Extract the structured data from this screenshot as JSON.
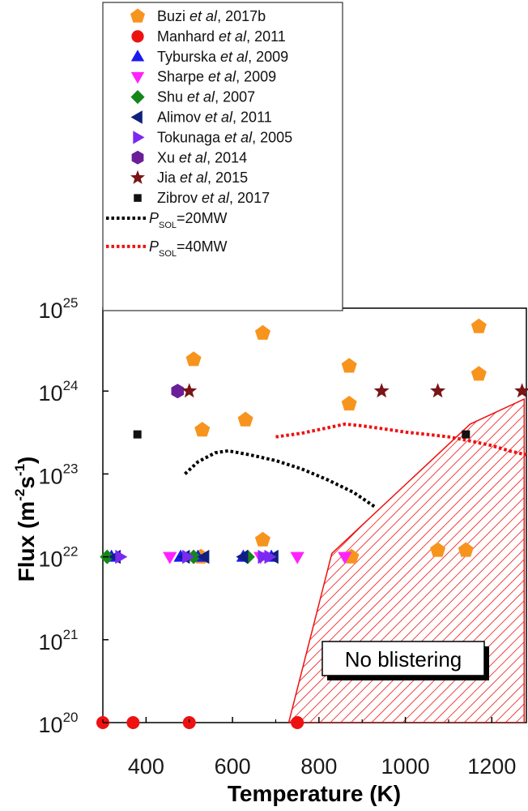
{
  "chart_data": {
    "type": "scatter",
    "xlabel": "Temperature (K)",
    "ylabel_base": "Flux (m",
    "ylabel_exp1": "-2",
    "ylabel_mid": "s",
    "ylabel_exp2": "-1",
    "ylabel_end": ")",
    "xlim": [
      300,
      1280
    ],
    "ylim": [
      1e+20,
      1e+25
    ],
    "yscale": "log",
    "x_ticks": [
      400,
      600,
      800,
      1000,
      1200
    ],
    "y_tick_exponents": [
      20,
      21,
      22,
      23,
      24,
      25
    ],
    "y_tick_base": "10",
    "grid": false,
    "legend_position": "top-left",
    "annotation": "No blistering",
    "no_blistering_region": [
      [
        730,
        1e+20
      ],
      [
        830,
        1.1e+22
      ],
      [
        1150,
        4e+23
      ],
      [
        1275,
        8e+23
      ],
      [
        1275,
        1e+20
      ]
    ],
    "series": [
      {
        "name": "Buzi et al, 2017b",
        "name_pre": "Buzi ",
        "name_etal": "et al",
        "name_post": ", 2017b",
        "marker": "pentagon",
        "color": "#f7941d",
        "x": [
          510,
          530,
          527,
          630,
          670,
          670,
          870,
          870,
          875,
          1075,
          1140,
          1170,
          1170
        ],
        "y": [
          2.4e+24,
          3.4e+23,
          1e+22,
          4.5e+23,
          5e+24,
          1.6e+22,
          2e+24,
          7e+23,
          1e+22,
          1.2e+22,
          1.2e+22,
          6e+24,
          1.6e+24
        ]
      },
      {
        "name": "Manhard et al, 2011",
        "name_pre": "Manhard ",
        "name_etal": "et al",
        "name_post": ", 2011",
        "marker": "circle",
        "color": "#ee1111",
        "x": [
          300,
          370,
          500,
          750
        ],
        "y": [
          1e+20,
          1e+20,
          1e+20,
          1e+20
        ]
      },
      {
        "name": "Tyburska et al, 2009",
        "name_pre": "Tyburska ",
        "name_etal": "et al",
        "name_post": ", 2009",
        "marker": "triangle-up",
        "color": "#1a1aee",
        "x": [
          320,
          480,
          520,
          625,
          690
        ],
        "y": [
          1e+22,
          1e+22,
          1e+22,
          1e+22,
          1e+22
        ]
      },
      {
        "name": "Sharpe et al, 2009",
        "name_pre": "Sharpe ",
        "name_etal": "et al",
        "name_post": ", 2009",
        "marker": "triangle-down",
        "color": "#ff22ff",
        "x": [
          455,
          665,
          750,
          860
        ],
        "y": [
          1e+22,
          1e+22,
          1e+22,
          1e+22
        ]
      },
      {
        "name": "Shu et al, 2007",
        "name_pre": "Shu ",
        "name_etal": "et al",
        "name_post": ", 2007",
        "marker": "diamond",
        "color": "#16861a",
        "x": [
          310,
          510,
          635
        ],
        "y": [
          1e+22,
          1e+22,
          1e+22
        ]
      },
      {
        "name": "Alimov et al, 2011",
        "name_pre": "Alimov ",
        "name_etal": "et al",
        "name_post": ", 2011",
        "marker": "triangle-left",
        "color": "#102080",
        "x": [
          330,
          490,
          535,
          625,
          695
        ],
        "y": [
          1e+22,
          1e+22,
          1e+22,
          1e+22,
          1e+22
        ]
      },
      {
        "name": "Tokunaga et al, 2005",
        "name_pre": "Tokunaga ",
        "name_etal": "et al",
        "name_post": ", 2005",
        "marker": "triangle-right",
        "color": "#7a2af0",
        "x": [
          340,
          495,
          670,
          685
        ],
        "y": [
          1e+22,
          1e+22,
          1e+22,
          1e+22
        ]
      },
      {
        "name": "Xu et al, 2014",
        "name_pre": "Xu ",
        "name_etal": "et al",
        "name_post": ", 2014",
        "marker": "hexagon",
        "color": "#6a1e9a",
        "x": [
          473
        ],
        "y": [
          1e+24
        ]
      },
      {
        "name": "Jia et al, 2015",
        "name_pre": "Jia ",
        "name_etal": "et al",
        "name_post": ", 2015",
        "marker": "star",
        "color": "#7a1416",
        "x": [
          500,
          945,
          1075,
          1270
        ],
        "y": [
          1e+24,
          1e+24,
          1e+24,
          1e+24
        ]
      },
      {
        "name": "Zibrov et al, 2017",
        "name_pre": "Zibrov ",
        "name_etal": "et al",
        "name_post": ", 2017",
        "marker": "square",
        "color": "#111111",
        "x": [
          380,
          1140
        ],
        "y": [
          3e+23,
          3e+23
        ]
      }
    ],
    "lines": [
      {
        "name": "PSOL=20MW",
        "label_p": "P",
        "label_sub": "SOL",
        "label_rest": "=20MW",
        "color": "#000000",
        "x": [
          490,
          520,
          560,
          590,
          640,
          700,
          760,
          820,
          880,
          930
        ],
        "y": [
          1e+23,
          1.4e+23,
          1.8e+23,
          1.9e+23,
          1.7e+23,
          1.45e+23,
          1.15e+23,
          8.5e+22,
          6e+22,
          4e+22
        ]
      },
      {
        "name": "PSOL=40MW",
        "label_p": "P",
        "label_sub": "SOL",
        "label_rest": "=40MW",
        "color": "#ee1111",
        "x": [
          700,
          760,
          820,
          860,
          900,
          950,
          1000,
          1050,
          1100,
          1150,
          1200,
          1240,
          1280
        ],
        "y": [
          2.8e+23,
          3.1e+23,
          3.6e+23,
          4e+23,
          3.8e+23,
          3.5e+23,
          3.2e+23,
          3e+23,
          2.8e+23,
          2.5e+23,
          2.2e+23,
          1.9e+23,
          1.7e+23
        ]
      }
    ]
  }
}
